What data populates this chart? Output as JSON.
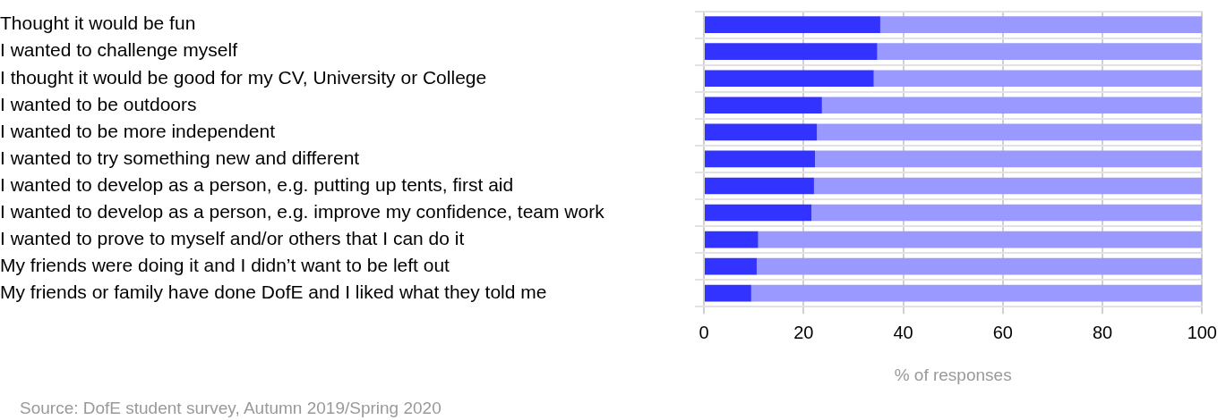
{
  "chart_data": {
    "type": "bar",
    "orientation": "horizontal",
    "stacked": true,
    "grid": true,
    "categories": [
      "Thought it would be fun",
      "I wanted to challenge myself",
      "I thought it would be good for my CV, University or College",
      "I wanted to be outdoors",
      "I wanted to be more independent",
      "I wanted to try something new and different",
      "I wanted to develop as a person, e.g. putting up tents, first aid",
      "I wanted to develop as a person, e.g. improve my confidence, team work",
      "I wanted to prove to myself and/or others that I can do it",
      "My friends were doing it and I didn’t want to be left out",
      "My friends or family have done DofE and I liked what they told me"
    ],
    "series": [
      {
        "color": "#3333ff",
        "values": [
          35.4,
          34.8,
          34.1,
          23.7,
          22.7,
          22.3,
          22.1,
          21.6,
          10.9,
          10.6,
          9.5
        ]
      },
      {
        "color": "#9999ff",
        "values": [
          64.6,
          65.2,
          65.9,
          76.3,
          77.3,
          77.7,
          77.9,
          78.4,
          89.1,
          89.4,
          90.5
        ]
      }
    ],
    "xlim": [
      0,
      100
    ],
    "xticks": [
      0,
      20,
      40,
      60,
      80,
      100
    ],
    "xlabel": "% of responses",
    "annotations": [
      "Source: DofE student survey, Autumn 2019/Spring 2020"
    ]
  }
}
